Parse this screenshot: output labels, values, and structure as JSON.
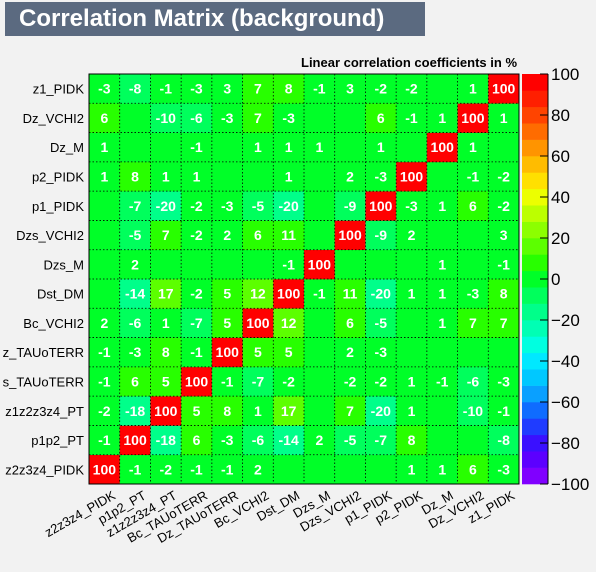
{
  "title": "Correlation Matrix (background)",
  "colors": {
    "background": "#f2f2f2",
    "title_bg": "#5b6a80",
    "title_fg": "#ffffff",
    "grid": "#000000",
    "cell_text": "#ffffff"
  },
  "chart_data": {
    "type": "heatmap",
    "subtitle": "Linear correlation coefficients in %",
    "variables": [
      "z2z3z4_PIDK",
      "p1p2_PT",
      "z1z2z3z4_PT",
      "Bc_TAUoTERR",
      "Dz_TAUoTERR",
      "Bc_VCHI2",
      "Dst_DM",
      "Dzs_M",
      "Dzs_VCHI2",
      "p1_PIDK",
      "p2_PIDK",
      "Dz_M",
      "Dz_VCHI2",
      "z1_PIDK"
    ],
    "y_tick_labels": [
      "z2z3z4_PIDK",
      "p1p2_PT",
      "z1z2z3z4_PT",
      "s_TAUoTERR",
      "z_TAUoTERR",
      "Bc_VCHI2",
      "Dst_DM",
      "Dzs_M",
      "Dzs_VCHI2",
      "p1_PIDK",
      "p2_PIDK",
      "Dz_M",
      "Dz_VCHI2",
      "z1_PIDK"
    ],
    "x_tick_labels": [
      "z2z3z4_PIDK",
      "p1p2_PT",
      "z1z2z3z4_PT",
      "Bc_TAUoTERR",
      "Dz_TAUoTERR",
      "Bc_VCHI2",
      "Dst_DM",
      "Dzs_M",
      "Dzs_VCHI2",
      "p1_PIDK",
      "p2_PIDK",
      "Dz_M",
      "Dz_VCHI2",
      "z1_PIDK"
    ],
    "values": [
      [
        100,
        -1,
        -2,
        -1,
        -1,
        2,
        null,
        null,
        null,
        null,
        1,
        1,
        6,
        -3
      ],
      [
        -1,
        100,
        -18,
        6,
        -3,
        -6,
        -14,
        2,
        -5,
        -7,
        8,
        null,
        null,
        -8
      ],
      [
        -2,
        -18,
        100,
        5,
        8,
        1,
        17,
        null,
        7,
        -20,
        1,
        null,
        -10,
        -1
      ],
      [
        -1,
        6,
        5,
        100,
        -1,
        -7,
        -2,
        null,
        -2,
        -2,
        1,
        -1,
        -6,
        -3
      ],
      [
        -1,
        -3,
        8,
        -1,
        100,
        5,
        5,
        null,
        2,
        -3,
        null,
        null,
        null,
        null
      ],
      [
        2,
        -6,
        1,
        -7,
        5,
        100,
        12,
        null,
        6,
        -5,
        null,
        1,
        7,
        7
      ],
      [
        null,
        -14,
        17,
        -2,
        5,
        12,
        100,
        -1,
        11,
        -20,
        1,
        1,
        -3,
        8
      ],
      [
        null,
        2,
        null,
        null,
        null,
        null,
        -1,
        100,
        null,
        null,
        null,
        1,
        null,
        -1
      ],
      [
        null,
        -5,
        7,
        -2,
        2,
        6,
        11,
        null,
        100,
        -9,
        2,
        null,
        null,
        3
      ],
      [
        null,
        -7,
        -20,
        -2,
        -3,
        -5,
        -20,
        null,
        -9,
        100,
        -3,
        1,
        6,
        -2
      ],
      [
        1,
        8,
        1,
        1,
        null,
        null,
        1,
        null,
        2,
        -3,
        100,
        null,
        -1,
        -2
      ],
      [
        1,
        null,
        null,
        -1,
        null,
        1,
        1,
        1,
        null,
        1,
        null,
        100,
        1,
        null
      ],
      [
        6,
        null,
        -10,
        -6,
        -3,
        7,
        -3,
        null,
        null,
        6,
        -1,
        1,
        100,
        1
      ],
      [
        -3,
        -8,
        -1,
        -3,
        3,
        7,
        8,
        -1,
        3,
        -2,
        -2,
        null,
        1,
        100
      ]
    ],
    "z_range": [
      -100,
      100
    ],
    "z_ticks": [
      100,
      80,
      60,
      40,
      20,
      0,
      -20,
      -40,
      -60,
      -80,
      -100
    ],
    "z_tick_labels": [
      "100",
      "80",
      "60",
      "40",
      "20",
      "0",
      "−20",
      "−40",
      "−60",
      "−80",
      "−100"
    ],
    "palette": [
      "#8000ff",
      "#5c00ff",
      "#3a10ff",
      "#1f3cff",
      "#0f6cff",
      "#0aa0ff",
      "#00c8ff",
      "#00e8ff",
      "#00ffe0",
      "#00ffb4",
      "#00ff8a",
      "#00ff5c",
      "#00ff28",
      "#28ff00",
      "#5cff00",
      "#8cff00",
      "#bcff00",
      "#ecff00",
      "#ffe000",
      "#ffbc00",
      "#ff9400",
      "#ff6c00",
      "#ff4400",
      "#ff1f00",
      "#ff0000"
    ],
    "grid": true,
    "legend": "right"
  }
}
